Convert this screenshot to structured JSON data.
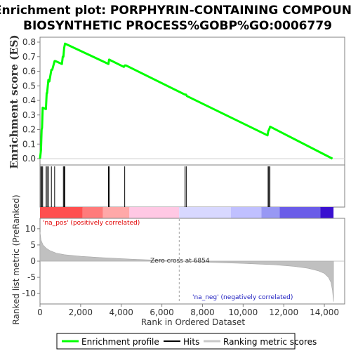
{
  "chart_data": {
    "type": "line",
    "title_line1": "Enrichment plot: PORPHYRIN-CONTAINING COMPOUND",
    "title_line2": "BIOSYNTHETIC PROCESS%GOBP%GO:0006779",
    "es_panel": {
      "ylabel": "Enrichment score (ES)",
      "ylim": [
        0,
        0.8
      ],
      "yticks": [
        "0.0",
        "0.1",
        "0.2",
        "0.3",
        "0.4",
        "0.5",
        "0.6",
        "0.7",
        "0.8"
      ],
      "line_color": "#00ff00",
      "series": [
        {
          "x": [
            0,
            50,
            80,
            100,
            130,
            290,
            330,
            350,
            410,
            460,
            560,
            600,
            720,
            760,
            1080,
            1120,
            1150,
            1190,
            1230,
            3370,
            3400,
            4130,
            4170,
            4230,
            7130,
            7190,
            7230,
            11200,
            11240,
            11280,
            11330,
            14400
          ],
          "y": [
            0,
            0.06,
            0.2,
            0.21,
            0.35,
            0.34,
            0.45,
            0.45,
            0.54,
            0.53,
            0.61,
            0.61,
            0.67,
            0.67,
            0.65,
            0.7,
            0.7,
            0.76,
            0.79,
            0.65,
            0.68,
            0.63,
            0.64,
            0.64,
            0.44,
            0.44,
            0.43,
            0.16,
            0.19,
            0.2,
            0.22,
            0
          ]
        }
      ]
    },
    "hits": [
      40,
      90,
      130,
      300,
      350,
      420,
      560,
      720,
      1150,
      1190,
      1220,
      3370,
      3410,
      4170,
      7140,
      7200,
      11230,
      11270,
      11320
    ],
    "gradient": {
      "segments": [
        {
          "start": 0,
          "end": 2100,
          "color": "#ff4f4f"
        },
        {
          "start": 2100,
          "end": 3100,
          "color": "#ff7b7b"
        },
        {
          "start": 3100,
          "end": 4400,
          "color": "#ffa8a8"
        },
        {
          "start": 4400,
          "end": 6850,
          "color": "#ffc8e4"
        },
        {
          "start": 6850,
          "end": 9400,
          "color": "#d8d8ff"
        },
        {
          "start": 9400,
          "end": 10900,
          "color": "#c0c0ff"
        },
        {
          "start": 10900,
          "end": 11800,
          "color": "#9898f4"
        },
        {
          "start": 11800,
          "end": 13800,
          "color": "#6a5ce8"
        },
        {
          "start": 13800,
          "end": 14450,
          "color": "#3a10d0"
        }
      ]
    },
    "metric_panel": {
      "ylabel": "Ranked list metric (PreRanked)",
      "ylim": [
        -13,
        13
      ],
      "yticks": [
        "10",
        "5",
        "0",
        "-5",
        "-10"
      ],
      "ytick_values": [
        10,
        5,
        0,
        -5,
        -10
      ],
      "na_pos_label": "'na_pos' (positively correlated)",
      "na_neg_label": "'na_neg' (negatively correlated)",
      "zero_cross_label": "Zero cross at 6854",
      "zero_cross": 6854,
      "profile": {
        "x": [
          0,
          50,
          150,
          300,
          500,
          800,
          1200,
          2000,
          3000,
          4500,
          6854,
          8500,
          10000,
          11500,
          12500,
          13200,
          13700,
          14000,
          14200,
          14320,
          14400,
          14450
        ],
        "y": [
          9,
          6.5,
          5,
          4,
          3.2,
          2.5,
          2,
          1.5,
          1.1,
          0.6,
          0,
          -0.4,
          -0.7,
          -1.1,
          -1.6,
          -2.2,
          -3,
          -3.8,
          -5,
          -6.5,
          -9,
          -12.5
        ]
      }
    },
    "xaxis": {
      "xlabel": "Rank in Ordered Dataset",
      "xlim": [
        0,
        15000
      ],
      "xticks": [
        "0",
        "2,000",
        "4,000",
        "6,000",
        "8,000",
        "10,000",
        "12,000",
        "14,000"
      ],
      "xtick_values": [
        0,
        2000,
        4000,
        6000,
        8000,
        10000,
        12000,
        14000
      ]
    },
    "legend": [
      {
        "label": "Enrichment profile",
        "color": "#00ff00"
      },
      {
        "label": "Hits",
        "color": "#000000"
      },
      {
        "label": "Ranking metric scores",
        "color": "#c8c8c8"
      }
    ]
  }
}
